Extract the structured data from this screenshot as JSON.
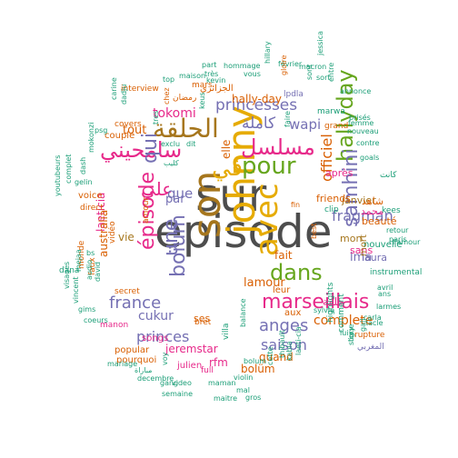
{
  "palette": {
    "gray": "#4d4d4d",
    "gold": "#e6ab02",
    "green": "#1b9e77",
    "orange": "#d95f02",
    "purple": "#7570b3",
    "pink": "#e7298a",
    "olive": "#66a61e",
    "brown": "#a6761d"
  },
  "words": [
    {
      "text": "episode",
      "color": "gray",
      "rot": 0
    },
    {
      "text": "sur",
      "color": "gray",
      "rot": 0
    },
    {
      "text": "son",
      "color": "brown",
      "rot": 90
    },
    {
      "text": "johnny",
      "color": "gold",
      "rot": 90
    },
    {
      "text": "avec",
      "color": "gold",
      "rot": 90
    },
    {
      "text": "dans",
      "color": "olive",
      "rot": 0
    },
    {
      "text": "hallyday",
      "color": "olive",
      "rot": 90
    },
    {
      "text": "pour",
      "color": "olive",
      "rot": 0
    },
    {
      "text": "في",
      "color": "gold",
      "rot": 0
    },
    {
      "text": "الحلقة",
      "color": "brown",
      "rot": 0
    },
    {
      "text": "مسلسل",
      "color": "pink",
      "rot": 0
    },
    {
      "text": "سامحيني",
      "color": "pink",
      "rot": 0
    },
    {
      "text": "marseillais",
      "color": "pink",
      "rot": 0
    },
    {
      "text": "épisode",
      "color": "pink",
      "rot": 90
    },
    {
      "text": "une",
      "color": "purple",
      "rot": 90
    },
    {
      "text": "qui",
      "color": "purple",
      "rot": 90
    },
    {
      "text": "boïum",
      "color": "purple",
      "rot": 90
    },
    {
      "text": "samhini",
      "color": "purple",
      "rot": 90
    },
    {
      "text": "officiel",
      "color": "orange",
      "rot": 90
    },
    {
      "text": "anges",
      "color": "purple",
      "rot": 0
    },
    {
      "text": "france",
      "color": "purple",
      "rot": 0
    },
    {
      "text": "princesses",
      "color": "purple",
      "rot": 0
    },
    {
      "text": "كاملة",
      "color": "purple",
      "rot": 0
    },
    {
      "text": "على",
      "color": "pink",
      "rot": 0
    },
    {
      "text": "wapi",
      "color": "purple",
      "rot": 0
    },
    {
      "text": "saison",
      "color": "purple",
      "rot": 0
    },
    {
      "text": "fragman",
      "color": "purple",
      "rot": 0
    },
    {
      "text": "princes",
      "color": "purple",
      "rot": 0
    },
    {
      "text": "complete",
      "color": "orange",
      "rot": 0
    },
    {
      "text": "que",
      "color": "purple",
      "rot": 0
    },
    {
      "text": "par",
      "color": "purple",
      "rot": 0
    },
    {
      "text": "tokomi",
      "color": "pink",
      "rot": 0
    },
    {
      "text": "tout",
      "color": "orange",
      "rot": 0
    },
    {
      "text": "fait",
      "color": "orange",
      "rot": 0
    },
    {
      "text": "elle",
      "color": "orange",
      "rot": 90
    },
    {
      "text": "lma",
      "color": "purple",
      "rot": 0
    },
    {
      "text": "lamour",
      "color": "orange",
      "rot": 0
    },
    {
      "text": "cukur",
      "color": "purple",
      "rot": 0
    },
    {
      "text": "jeremstar",
      "color": "pink",
      "rot": 0
    },
    {
      "text": "rfm",
      "color": "pink",
      "rot": 0
    },
    {
      "text": "quand",
      "color": "orange",
      "rot": 0
    },
    {
      "text": "bolüm",
      "color": "orange",
      "rot": 0
    },
    {
      "text": "hally-day",
      "color": "orange",
      "rot": 0
    },
    {
      "text": "laeticia",
      "color": "pink",
      "rot": 90
    },
    {
      "text": "australia",
      "color": "orange",
      "rot": 90
    },
    {
      "text": "vie",
      "color": "brown",
      "rot": 0
    },
    {
      "text": "ses",
      "color": "orange",
      "rot": 0
    },
    {
      "text": "janvier",
      "color": "brown",
      "rot": 0
    },
    {
      "text": "friends",
      "color": "orange",
      "rot": 0
    },
    {
      "text": "après",
      "color": "pink",
      "rot": 0
    },
    {
      "text": "mon",
      "color": "brown",
      "rot": 0
    },
    {
      "text": "beauté",
      "color": "orange",
      "rot": 0
    },
    {
      "text": "laura",
      "color": "purple",
      "rot": 0
    },
    {
      "text": "nouvelle",
      "color": "green",
      "rot": 0
    },
    {
      "text": "sans",
      "color": "pink",
      "rot": 0
    },
    {
      "text": "mort",
      "color": "brown",
      "rot": 90
    },
    {
      "text": "حلقة",
      "color": "pink",
      "rot": 0
    },
    {
      "text": "محمد",
      "color": "pink",
      "rot": 0
    },
    {
      "text": "شاهد",
      "color": "orange",
      "rot": 0
    },
    {
      "text": "كانت",
      "color": "green",
      "rot": 0
    },
    {
      "text": "retour",
      "color": "green",
      "rot": 0
    },
    {
      "text": "kees",
      "color": "green",
      "rot": 0
    },
    {
      "text": "paris",
      "color": "green",
      "rot": 0
    },
    {
      "text": "l'amour",
      "color": "green",
      "rot": 0
    },
    {
      "text": "instrumental",
      "color": "green",
      "rot": 0
    },
    {
      "text": "larmes",
      "color": "green",
      "rot": 0
    },
    {
      "text": "avril",
      "color": "green",
      "rot": 0
    },
    {
      "text": "ans",
      "color": "green",
      "rot": 0
    },
    {
      "text": "tacle",
      "color": "green",
      "rot": 0
    },
    {
      "text": "rupture",
      "color": "orange",
      "rot": 0
    },
    {
      "text": "carla",
      "color": "green",
      "rot": 0
    },
    {
      "text": "المغربي",
      "color": "purple",
      "rot": 0
    },
    {
      "text": "highlights",
      "color": "green",
      "rot": 90
    },
    {
      "text": "comment",
      "color": "green",
      "rot": 90
    },
    {
      "text": "story",
      "color": "green",
      "rot": 90
    },
    {
      "text": "lui",
      "color": "green",
      "rot": 0
    },
    {
      "text": "sylvie",
      "color": "green",
      "rot": 0
    },
    {
      "text": "aux",
      "color": "orange",
      "rot": 0
    },
    {
      "text": "leur",
      "color": "orange",
      "rot": 0
    },
    {
      "text": "bret",
      "color": "orange",
      "rot": 0
    },
    {
      "text": "villa",
      "color": "green",
      "rot": 90
    },
    {
      "text": "full",
      "color": "pink",
      "rot": 0
    },
    {
      "text": "julien",
      "color": "pink",
      "rot": 0
    },
    {
      "text": "songs",
      "color": "pink",
      "rot": 0
    },
    {
      "text": "popular",
      "color": "orange",
      "rot": 0
    },
    {
      "text": "pourquoi",
      "color": "orange",
      "rot": 0
    },
    {
      "text": "manon",
      "color": "pink",
      "rot": 0
    },
    {
      "text": "secret",
      "color": "orange",
      "rot": 0
    },
    {
      "text": "amour",
      "color": "orange",
      "rot": 90
    },
    {
      "text": "vidéo",
      "color": "orange",
      "rot": 90
    },
    {
      "text": "faux",
      "color": "orange",
      "rot": 90
    },
    {
      "text": "monde",
      "color": "orange",
      "rot": 90
    },
    {
      "text": "voice",
      "color": "orange",
      "rot": 0
    },
    {
      "text": "direct",
      "color": "orange",
      "rot": 0
    },
    {
      "text": "couple",
      "color": "orange",
      "rot": 0
    },
    {
      "text": "interview",
      "color": "orange",
      "rot": 0
    },
    {
      "text": "mars",
      "color": "orange",
      "rot": 0
    },
    {
      "text": "الجزائري",
      "color": "orange",
      "rot": 0
    },
    {
      "text": "رمضان",
      "color": "orange",
      "rot": 0
    },
    {
      "text": "covers",
      "color": "orange",
      "rot": 0
    },
    {
      "text": "lpdla",
      "color": "purple",
      "rot": 0
    },
    {
      "text": "clip",
      "color": "green",
      "rot": 0
    },
    {
      "text": "grand",
      "color": "orange",
      "rot": 0
    },
    {
      "text": "marwa",
      "color": "green",
      "rot": 0
    },
    {
      "text": "best",
      "color": "orange",
      "rot": 90
    },
    {
      "text": "decembre",
      "color": "green",
      "rot": 0
    },
    {
      "text": "maman",
      "color": "green",
      "rot": 0
    },
    {
      "text": "violin",
      "color": "green",
      "rot": 0
    },
    {
      "text": "video",
      "color": "green",
      "rot": 0
    },
    {
      "text": "gang",
      "color": "green",
      "rot": 0
    },
    {
      "text": "semaine",
      "color": "green",
      "rot": 0
    },
    {
      "text": "maitre",
      "color": "green",
      "rot": 0
    },
    {
      "text": "gros",
      "color": "green",
      "rot": 0
    },
    {
      "text": "mal",
      "color": "green",
      "rot": 0
    },
    {
      "text": "thibault",
      "color": "green",
      "rot": 90
    },
    {
      "text": "laeti-cia",
      "color": "green",
      "rot": 90
    },
    {
      "text": "kabla",
      "color": "green",
      "rot": 90
    },
    {
      "text": "cette",
      "color": "green",
      "rot": 90
    },
    {
      "text": "balance",
      "color": "green",
      "rot": 90
    },
    {
      "text": "mariage",
      "color": "green",
      "rot": 0
    },
    {
      "text": "مباراة",
      "color": "green",
      "rot": 0
    },
    {
      "text": "visages",
      "color": "green",
      "rot": 90
    },
    {
      "text": "vincent",
      "color": "green",
      "rot": 90
    },
    {
      "text": "dana",
      "color": "green",
      "rot": 0
    },
    {
      "text": "gims",
      "color": "green",
      "rot": 0
    },
    {
      "text": "coeurs",
      "color": "green",
      "rot": 0
    },
    {
      "text": "youtubeurs",
      "color": "green",
      "rot": 90
    },
    {
      "text": "complet",
      "color": "green",
      "rot": 90
    },
    {
      "text": "mejaa",
      "color": "green",
      "rot": 90
    },
    {
      "text": "audio",
      "color": "green",
      "rot": 90
    },
    {
      "text": "david",
      "color": "green",
      "rot": 90
    },
    {
      "text": "dash",
      "color": "green",
      "rot": 90
    },
    {
      "text": "mokonzi",
      "color": "green",
      "rot": 90
    },
    {
      "text": "gelin",
      "color": "green",
      "rot": 0
    },
    {
      "text": "psg",
      "color": "green",
      "rot": 0
    },
    {
      "text": "carine",
      "color": "green",
      "rot": 90
    },
    {
      "text": "dadju",
      "color": "green",
      "rot": 90
    },
    {
      "text": "exclu",
      "color": "green",
      "rot": 0
    },
    {
      "text": "dit",
      "color": "green",
      "rot": 0
    },
    {
      "text": "كليب",
      "color": "green",
      "rot": 0
    },
    {
      "text": "top",
      "color": "green",
      "rot": 0
    },
    {
      "text": "maison",
      "color": "green",
      "rot": 0
    },
    {
      "text": "part",
      "color": "green",
      "rot": 0
    },
    {
      "text": "hommage",
      "color": "green",
      "rot": 0
    },
    {
      "text": "très",
      "color": "green",
      "rot": 0
    },
    {
      "text": "vous",
      "color": "green",
      "rot": 0
    },
    {
      "text": "février",
      "color": "green",
      "rot": 0
    },
    {
      "text": "kevin",
      "color": "green",
      "rot": 0
    },
    {
      "text": "macron",
      "color": "green",
      "rot": 0
    },
    {
      "text": "sort",
      "color": "green",
      "rot": 0
    },
    {
      "text": "nouveau",
      "color": "green",
      "rot": 0
    },
    {
      "text": "contre",
      "color": "green",
      "rot": 0
    },
    {
      "text": "goals",
      "color": "green",
      "rot": 0
    },
    {
      "text": "brisés",
      "color": "green",
      "rot": 0
    },
    {
      "text": "femme",
      "color": "green",
      "rot": 0
    },
    {
      "text": "entre",
      "color": "green",
      "rot": 90
    },
    {
      "text": "jessica",
      "color": "green",
      "rot": 90
    },
    {
      "text": "annonce",
      "color": "green",
      "rot": 0
    },
    {
      "text": "sont",
      "color": "green",
      "rot": 90
    },
    {
      "text": "gloire",
      "color": "orange",
      "rot": 90
    },
    {
      "text": "hillary",
      "color": "green",
      "rot": 90
    },
    {
      "text": "keus",
      "color": "green",
      "rot": 90
    },
    {
      "text": "chez",
      "color": "orange",
      "rot": 90
    },
    {
      "text": "tres",
      "color": "green",
      "rot": 90
    },
    {
      "text": "gall",
      "color": "green",
      "rot": 90
    },
    {
      "text": "ligue",
      "color": "green",
      "rot": 90
    },
    {
      "text": "bs",
      "color": "green",
      "rot": 0
    },
    {
      "text": "fin",
      "color": "orange",
      "rot": 0
    },
    {
      "text": "faire",
      "color": "green",
      "rot": 90
    },
    {
      "text": "voy",
      "color": "green",
      "rot": 90
    },
    {
      "text": "bolum",
      "color": "green",
      "rot": 0
    }
  ]
}
